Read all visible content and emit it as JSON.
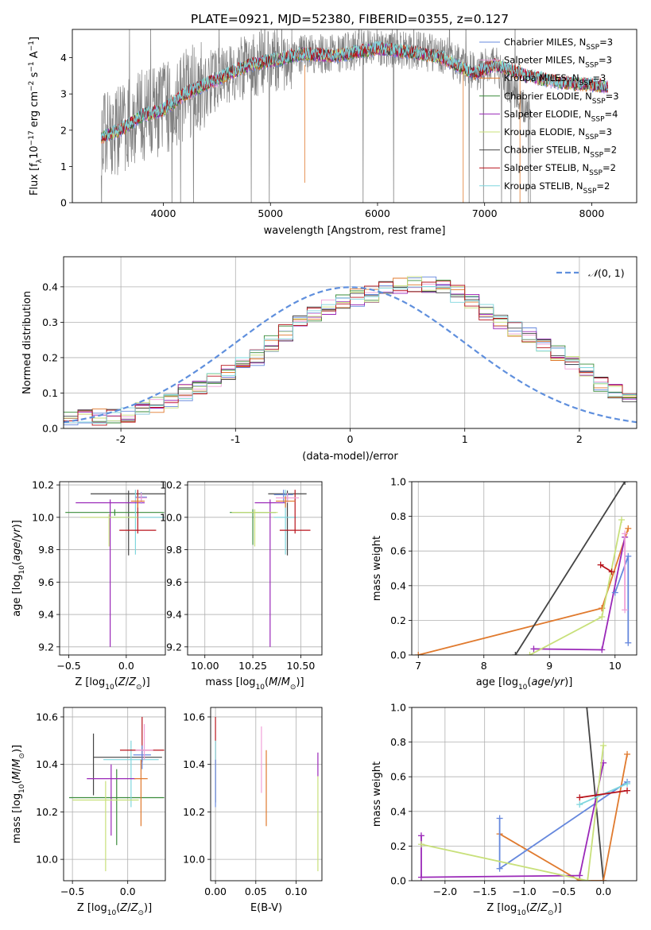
{
  "figure_title": "PLATE=0921, MJD=52380, FIBERID=0355, z=0.127",
  "colors": {
    "chabrier_miles": "#6688dd",
    "salpeter_miles": "#f0a0d8",
    "kroupa_miles": "#e07a2e",
    "chabrier_elodie": "#3a8c3a",
    "salpeter_elodie": "#9a28b8",
    "kroupa_elodie": "#c8e07a",
    "chabrier_stelib": "#444444",
    "salpeter_stelib": "#b8141c",
    "kroupa_stelib": "#7fd6dd",
    "gaussian": "#5f8fdd"
  },
  "chart_data": [
    {
      "id": "spectrum",
      "type": "line",
      "xlabel": "wavelength [Angstrom, rest frame]",
      "ylabel": "Flux [fλ10⁻¹⁷ erg cm⁻² s⁻¹ A⁻¹]",
      "xlim": [
        3150,
        8420
      ],
      "ylim": [
        0,
        4.78
      ],
      "xticks": [
        4000,
        5000,
        6000,
        7000,
        8000
      ],
      "yticks": [
        0,
        1,
        2,
        3,
        4
      ],
      "legend_position": "top-right",
      "data_x_range": [
        3420,
        7430
      ],
      "approx_continuum": [
        [
          3420,
          1.8
        ],
        [
          3600,
          2.1
        ],
        [
          3800,
          2.4
        ],
        [
          4000,
          2.6
        ],
        [
          4200,
          3.0
        ],
        [
          4500,
          3.4
        ],
        [
          4800,
          3.8
        ],
        [
          5000,
          3.9
        ],
        [
          5300,
          4.1
        ],
        [
          5600,
          4.1
        ],
        [
          6000,
          4.3
        ],
        [
          6300,
          4.2
        ],
        [
          6600,
          4.1
        ],
        [
          6900,
          3.6
        ],
        [
          7100,
          3.8
        ],
        [
          7430,
          2.4
        ]
      ],
      "models_x_range": [
        3420,
        8150
      ],
      "approx_model": [
        [
          3420,
          1.8
        ],
        [
          3600,
          2.0
        ],
        [
          3800,
          2.4
        ],
        [
          4000,
          2.55
        ],
        [
          4200,
          3.0
        ],
        [
          4500,
          3.4
        ],
        [
          4800,
          3.8
        ],
        [
          5000,
          3.9
        ],
        [
          5300,
          4.1
        ],
        [
          5600,
          4.05
        ],
        [
          6000,
          4.25
        ],
        [
          6300,
          4.15
        ],
        [
          6600,
          4.0
        ],
        [
          6900,
          3.55
        ],
        [
          7100,
          3.8
        ],
        [
          7400,
          3.5
        ],
        [
          7700,
          3.3
        ],
        [
          8000,
          3.25
        ],
        [
          8150,
          3.2
        ]
      ],
      "legend": [
        {
          "label": "Chabrier MILES, N",
          "sub": "SSP",
          "tail": "=3",
          "color_key": "chabrier_miles"
        },
        {
          "label": "Salpeter MILES, N",
          "sub": "SSP",
          "tail": "=3",
          "color_key": "salpeter_miles"
        },
        {
          "label": "Kroupa MILES, N",
          "sub": "SSP",
          "tail": "=3",
          "color_key": "kroupa_miles"
        },
        {
          "label": "Chabrier ELODIE, N",
          "sub": "SSP",
          "tail": "=3",
          "color_key": "chabrier_elodie"
        },
        {
          "label": "Salpeter ELODIE, N",
          "sub": "SSP",
          "tail": "=4",
          "color_key": "salpeter_elodie"
        },
        {
          "label": "Kroupa ELODIE, N",
          "sub": "SSP",
          "tail": "=3",
          "color_key": "kroupa_elodie"
        },
        {
          "label": "Chabrier STELIB, N",
          "sub": "SSP",
          "tail": "=2",
          "color_key": "chabrier_stelib"
        },
        {
          "label": "Salpeter STELIB, N",
          "sub": "SSP",
          "tail": "=2",
          "color_key": "salpeter_stelib"
        },
        {
          "label": "Kroupa STELIB, N",
          "sub": "SSP",
          "tail": "=2",
          "color_key": "kroupa_stelib"
        }
      ]
    },
    {
      "id": "residuals",
      "type": "step-histogram",
      "xlabel": "(data-model)/error",
      "ylabel": "Normed distribution",
      "xlim": [
        -2.5,
        2.5
      ],
      "ylim": [
        0,
        0.485
      ],
      "xticks": [
        -2,
        -1,
        0,
        1,
        2
      ],
      "ytick_labels": [
        "0.0",
        "0.1",
        "0.2",
        "0.3",
        "0.4"
      ],
      "yticks": [
        0,
        0.1,
        0.2,
        0.3,
        0.4
      ],
      "grid": true,
      "bin_start": -2.5,
      "bin_width": 0.125,
      "bins_reference": [
        0.028,
        0.03,
        0.034,
        0.037,
        0.042,
        0.052,
        0.066,
        0.082,
        0.1,
        0.12,
        0.14,
        0.158,
        0.18,
        0.2,
        0.24,
        0.27,
        0.3,
        0.325,
        0.345,
        0.36,
        0.37,
        0.38,
        0.392,
        0.4,
        0.408,
        0.405,
        0.398,
        0.38,
        0.36,
        0.33,
        0.305,
        0.285,
        0.262,
        0.24,
        0.215,
        0.19,
        0.16,
        0.125,
        0.105,
        0.085,
        0.06,
        0.05,
        0.04,
        0.035
      ],
      "legend": {
        "label": "N(0,1)",
        "position": "top-right"
      },
      "gaussian": {
        "mu": 0,
        "sigma": 1
      }
    },
    {
      "id": "age_vs_Z",
      "type": "errorbar",
      "xlabel": "Z [log10(Z/Z⊙)]",
      "ylabel": "age [log10(age/yr)]",
      "xlim": [
        -0.58,
        0.34
      ],
      "ylim": [
        9.15,
        10.22
      ],
      "xticks": [
        -0.5,
        0.0
      ],
      "xtick_labels": [
        "−0.5",
        "0.0"
      ],
      "yticks": [
        9.2,
        9.4,
        9.6,
        9.8,
        10.0,
        10.2
      ],
      "ytick_labels": [
        "9.2",
        "9.4",
        "9.6",
        "9.8",
        "10.0",
        "10.2"
      ],
      "points": [
        {
          "c": "chabrier_stelib",
          "x": 0.02,
          "y": 10.145,
          "xerr": 0.33,
          "yerr": [
            0.38,
            0.02
          ]
        },
        {
          "c": "chabrier_elodie",
          "x": -0.1,
          "y": 10.03,
          "xerr": 0.43,
          "yerr": [
            0.02,
            0.02
          ]
        },
        {
          "c": "kroupa_stelib",
          "x": 0.08,
          "y": 10.0,
          "xerr": 0.25,
          "yerr": [
            0.23,
            0.17
          ]
        },
        {
          "c": "salpeter_elodie",
          "x": -0.14,
          "y": 10.09,
          "xerr": 0.3,
          "yerr": [
            0.89,
            0.02
          ]
        },
        {
          "c": "salpeter_stelib",
          "x": 0.1,
          "y": 9.92,
          "xerr": 0.16,
          "yerr": [
            0.02,
            0.25
          ]
        },
        {
          "c": "kroupa_elodie",
          "x": -0.15,
          "y": 10.0,
          "xerr": 0.25,
          "yerr": [
            0.18,
            0.02
          ]
        },
        {
          "c": "chabrier_miles",
          "x": 0.13,
          "y": 10.125,
          "xerr": 0.05,
          "yerr": [
            0.04,
            0.03
          ]
        },
        {
          "c": "salpeter_miles",
          "x": 0.13,
          "y": 10.12,
          "xerr": 0.05,
          "yerr": [
            0.03,
            0.03
          ]
        },
        {
          "c": "kroupa_miles",
          "x": 0.1,
          "y": 10.1,
          "xerr": 0.06,
          "yerr": [
            0.04,
            0.03
          ]
        }
      ]
    },
    {
      "id": "age_vs_mass",
      "type": "errorbar",
      "xlabel": "mass [log10(M/M⊙)]",
      "ylabel": "",
      "xlim": [
        9.91,
        10.61
      ],
      "ylim": [
        9.15,
        10.22
      ],
      "xticks": [
        10.0,
        10.25,
        10.5
      ],
      "xtick_labels": [
        "10.00",
        "10.25",
        "10.50"
      ],
      "yticks": [
        9.2,
        9.4,
        9.6,
        9.8,
        10.0,
        10.2
      ],
      "ytick_labels": [
        "9.2",
        "9.4",
        "9.6",
        "9.8",
        "10.0",
        "10.2"
      ],
      "points": [
        {
          "c": "chabrier_stelib",
          "x": 10.43,
          "y": 10.145,
          "xerr": 0.1,
          "yerr": [
            0.38,
            0.02
          ]
        },
        {
          "c": "chabrier_elodie",
          "x": 10.25,
          "y": 10.03,
          "xerr": 0.12,
          "yerr": [
            0.2,
            0.02
          ]
        },
        {
          "c": "kroupa_stelib",
          "x": 10.42,
          "y": 10.0,
          "xerr": 0.06,
          "yerr": [
            0.23,
            0.17
          ]
        },
        {
          "c": "salpeter_elodie",
          "x": 10.34,
          "y": 10.09,
          "xerr": 0.08,
          "yerr": [
            0.89,
            0.02
          ]
        },
        {
          "c": "salpeter_stelib",
          "x": 10.47,
          "y": 9.92,
          "xerr": 0.08,
          "yerr": [
            0.02,
            0.25
          ]
        },
        {
          "c": "kroupa_elodie",
          "x": 10.26,
          "y": 10.03,
          "xerr": 0.12,
          "yerr": [
            0.21,
            0.02
          ]
        },
        {
          "c": "chabrier_miles",
          "x": 10.41,
          "y": 10.14,
          "xerr": 0.05,
          "yerr": [
            0.05,
            0.03
          ]
        },
        {
          "c": "salpeter_miles",
          "x": 10.43,
          "y": 10.12,
          "xerr": 0.06,
          "yerr": [
            0.03,
            0.03
          ]
        },
        {
          "c": "kroupa_miles",
          "x": 10.42,
          "y": 10.1,
          "xerr": 0.05,
          "yerr": [
            0.04,
            0.03
          ]
        }
      ]
    },
    {
      "id": "weight_vs_age",
      "type": "line",
      "xlabel": "age [log10(age/yr)]",
      "ylabel": "mass weight",
      "xlim": [
        6.9,
        10.33
      ],
      "ylim": [
        0,
        1.0
      ],
      "xticks": [
        7,
        8,
        9,
        10
      ],
      "yticks": [
        0,
        0.2,
        0.4,
        0.6,
        0.8,
        1.0
      ],
      "ytick_labels": [
        "0.0",
        "0.2",
        "0.4",
        "0.6",
        "0.8",
        "1.0"
      ],
      "series": [
        {
          "c": "kroupa_miles",
          "points": [
            [
              9.8,
              0.27
            ],
            [
              7.0,
              0.0
            ],
            [
              9.8,
              0.27
            ],
            [
              10.2,
              0.73
            ]
          ]
        },
        {
          "c": "chabrier_stelib",
          "points": [
            [
              8.48,
              0.0
            ],
            [
              10.15,
              1.0
            ]
          ]
        },
        {
          "c": "salpeter_elodie",
          "points": [
            [
              8.76,
              0.035
            ],
            [
              9.8,
              0.03
            ],
            [
              10.15,
              0.68
            ]
          ]
        },
        {
          "c": "kroupa_elodie",
          "points": [
            [
              8.7,
              0.0
            ],
            [
              9.8,
              0.22
            ],
            [
              10.1,
              0.78
            ]
          ]
        },
        {
          "c": "chabrier_miles",
          "points": [
            [
              10.0,
              0.36
            ],
            [
              10.2,
              0.57
            ],
            [
              10.2,
              0.07
            ]
          ]
        },
        {
          "c": "salpeter_stelib",
          "points": [
            [
              9.78,
              0.52
            ],
            [
              9.95,
              0.48
            ]
          ]
        },
        {
          "c": "salpeter_miles",
          "points": [
            [
              10.15,
              0.26
            ],
            [
              10.15,
              0.7
            ]
          ]
        }
      ]
    },
    {
      "id": "mass_vs_Z",
      "type": "errorbar",
      "xlabel": "Z [log10(Z/Z⊙)]",
      "ylabel": "mass [log10(M/M⊙)]",
      "xlim": [
        -0.58,
        0.34
      ],
      "ylim": [
        9.91,
        10.64
      ],
      "xticks": [
        -0.5,
        0.0
      ],
      "xtick_labels": [
        "−0.5",
        "0.0"
      ],
      "yticks": [
        10.0,
        10.2,
        10.4,
        10.6
      ],
      "ytick_labels": [
        "10.0",
        "10.2",
        "10.4",
        "10.6"
      ],
      "points": [
        {
          "c": "chabrier_stelib",
          "x": -0.31,
          "y": 10.43,
          "xerr": [
            0.0,
            0.62
          ],
          "yerr": [
            0.16,
            0.1
          ]
        },
        {
          "c": "chabrier_elodie",
          "x": -0.1,
          "y": 10.26,
          "xerr": 0.43,
          "yerr": [
            0.2,
            0.12
          ]
        },
        {
          "c": "kroupa_stelib",
          "x": 0.03,
          "y": 10.42,
          "xerr": 0.25,
          "yerr": [
            0.2,
            0.08
          ]
        },
        {
          "c": "salpeter_elodie",
          "x": -0.15,
          "y": 10.34,
          "xerr": 0.22,
          "yerr": [
            0.24,
            0.06
          ]
        },
        {
          "c": "salpeter_stelib",
          "x": 0.13,
          "y": 10.46,
          "xerr": 0.2,
          "yerr": [
            0.05,
            0.14
          ]
        },
        {
          "c": "kroupa_elodie",
          "x": -0.2,
          "y": 10.25,
          "xerr": 0.3,
          "yerr": [
            0.3,
            0.08
          ]
        },
        {
          "c": "chabrier_miles",
          "x": 0.13,
          "y": 10.44,
          "xerr": 0.08,
          "yerr": [
            0.06,
            0.04
          ]
        },
        {
          "c": "salpeter_miles",
          "x": 0.15,
          "y": 10.46,
          "xerr": 0.08,
          "yerr": [
            0.04,
            0.11
          ]
        },
        {
          "c": "kroupa_miles",
          "x": 0.12,
          "y": 10.34,
          "xerr": 0.06,
          "yerr": [
            0.2,
            0.08
          ]
        }
      ]
    },
    {
      "id": "mass_vs_ebv",
      "type": "errorbar",
      "xlabel": "E(B-V)",
      "ylabel": "",
      "xlim": [
        -0.006,
        0.132
      ],
      "ylim": [
        9.91,
        10.64
      ],
      "xticks": [
        0.0,
        0.05,
        0.1
      ],
      "xtick_labels": [
        "0.00",
        "0.05",
        "0.10"
      ],
      "yticks": [
        10.0,
        10.2,
        10.4,
        10.6
      ],
      "ytick_labels": [
        "10.0",
        "10.2",
        "10.4",
        "10.6"
      ],
      "points": [
        {
          "c": "salpeter_stelib",
          "x": 0.0,
          "y": 10.44,
          "yerr": [
            0.2,
            0.16
          ]
        },
        {
          "c": "kroupa_stelib",
          "x": 0.0,
          "y": 10.36,
          "yerr": [
            0.12,
            0.14
          ]
        },
        {
          "c": "chabrier_miles",
          "x": 0.0,
          "y": 10.32,
          "yerr": [
            0.1,
            0.1
          ]
        },
        {
          "c": "salpeter_miles",
          "x": 0.057,
          "y": 10.42,
          "yerr": [
            0.14,
            0.14
          ]
        },
        {
          "c": "kroupa_miles",
          "x": 0.063,
          "y": 10.3,
          "yerr": [
            0.16,
            0.16
          ]
        },
        {
          "c": "salpeter_elodie",
          "x": 0.127,
          "y": 10.4,
          "yerr": [
            0.05,
            0.05
          ]
        },
        {
          "c": "kroupa_elodie",
          "x": 0.127,
          "y": 10.15,
          "yerr": [
            0.2,
            0.2
          ]
        }
      ]
    },
    {
      "id": "weight_vs_Z",
      "type": "line",
      "xlabel": "Z [log10(Z/Z⊙)]",
      "ylabel": "mass weight",
      "xlim": [
        -2.42,
        0.42
      ],
      "ylim": [
        0,
        1.0
      ],
      "xticks": [
        -2.0,
        -1.5,
        -1.0,
        -0.5,
        0.0
      ],
      "xtick_labels": [
        "−2.0",
        "−1.5",
        "−1.0",
        "−0.5",
        "0.0"
      ],
      "yticks": [
        0,
        0.2,
        0.4,
        0.6,
        0.8,
        1.0
      ],
      "ytick_labels": [
        "0.0",
        "0.2",
        "0.4",
        "0.6",
        "0.8",
        "1.0"
      ],
      "series": [
        {
          "c": "chabrier_stelib",
          "points": [
            [
              -0.22,
              1.05
            ],
            [
              0.0,
              0.0
            ]
          ]
        },
        {
          "c": "kroupa_miles",
          "points": [
            [
              -1.31,
              0.27
            ],
            [
              -0.3,
              0.0
            ],
            [
              0.0,
              0.0
            ],
            [
              0.3,
              0.73
            ]
          ]
        },
        {
          "c": "chabrier_miles",
          "points": [
            [
              -1.31,
              0.36
            ],
            [
              -1.31,
              0.07
            ],
            [
              0.3,
              0.57
            ]
          ]
        },
        {
          "c": "salpeter_elodie",
          "points": [
            [
              -2.3,
              0.26
            ],
            [
              -2.3,
              0.02
            ],
            [
              -0.3,
              0.03
            ],
            [
              0.0,
              0.68
            ]
          ]
        },
        {
          "c": "kroupa_elodie",
          "points": [
            [
              -2.3,
              0.21
            ],
            [
              -0.2,
              0.0
            ],
            [
              0.0,
              0.78
            ]
          ]
        },
        {
          "c": "kroupa_stelib",
          "points": [
            [
              -0.3,
              0.44
            ],
            [
              0.3,
              0.56
            ]
          ]
        },
        {
          "c": "salpeter_stelib",
          "points": [
            [
              -0.3,
              0.48
            ],
            [
              0.3,
              0.52
            ]
          ]
        }
      ]
    }
  ]
}
